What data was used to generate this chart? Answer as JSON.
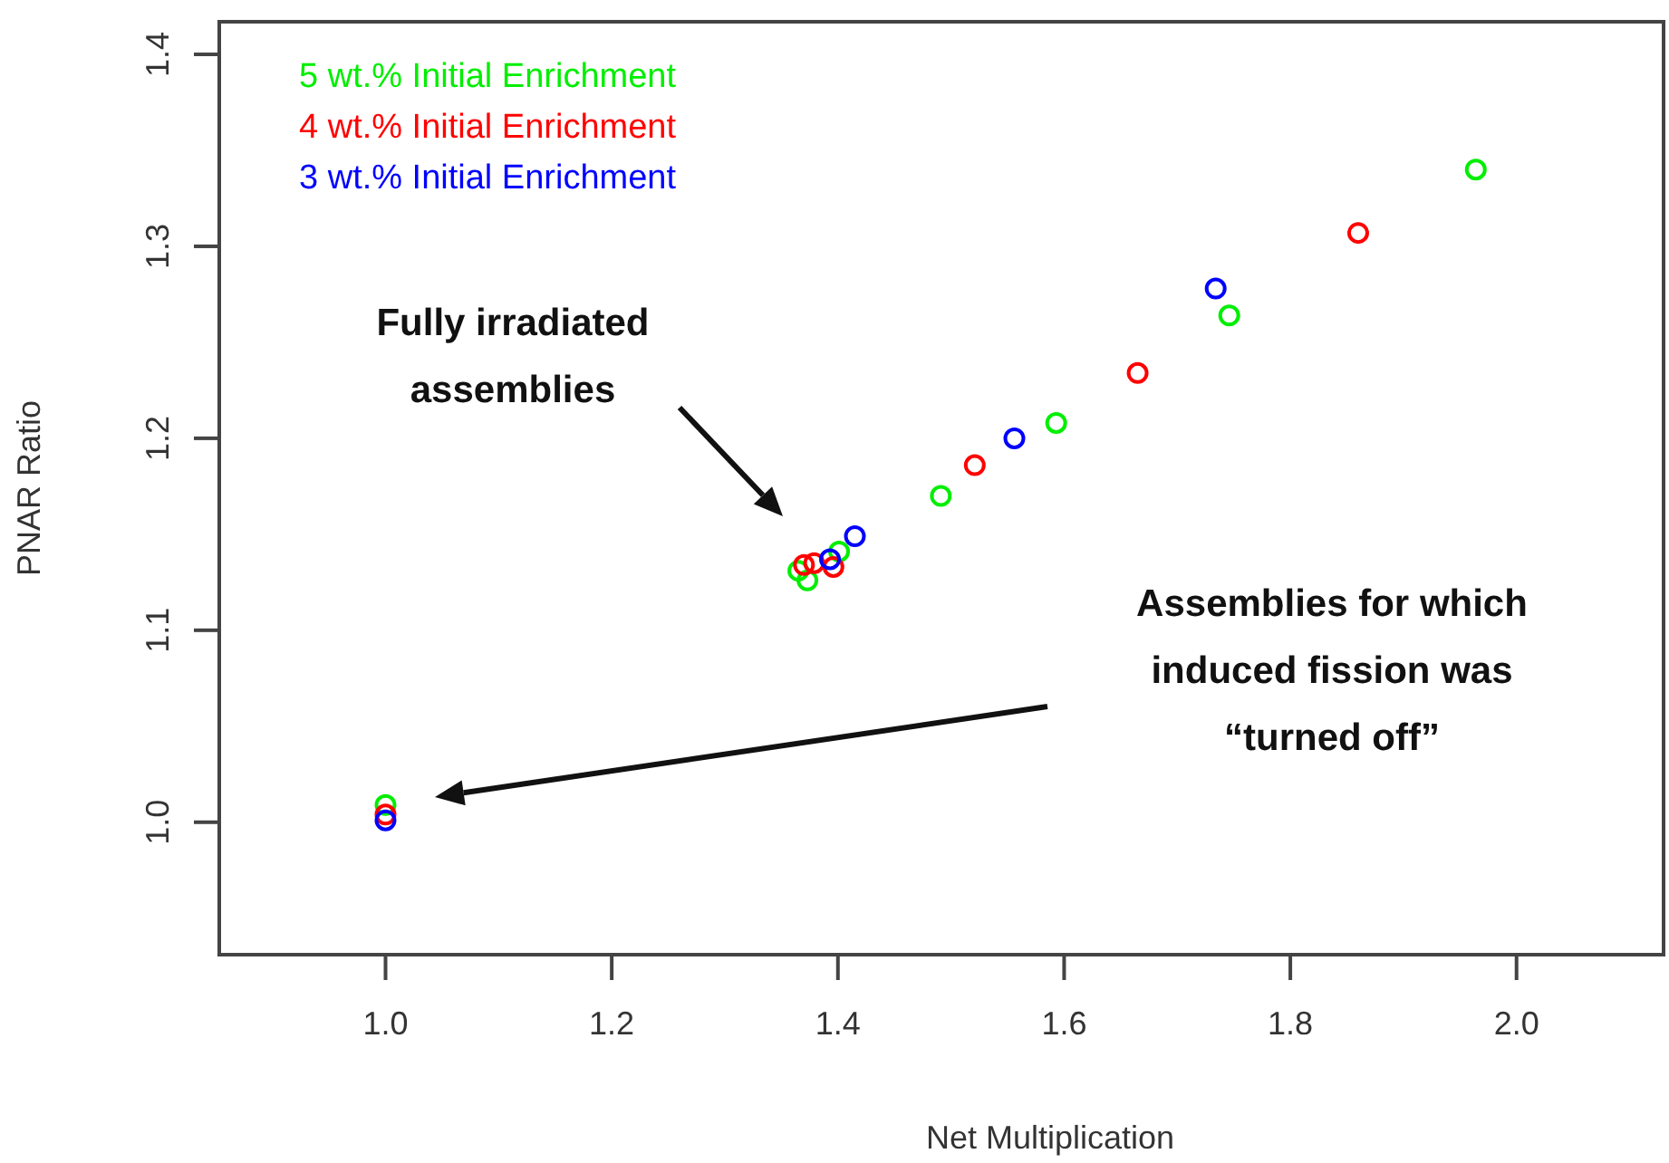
{
  "chart_data": {
    "type": "scatter",
    "xlabel": "Net Multiplication",
    "ylabel": "PNAR Ratio",
    "xlim": [
      0.853,
      2.13
    ],
    "ylim": [
      0.931,
      1.417
    ],
    "xticks": [
      {
        "value": 1.0,
        "label": "1.0"
      },
      {
        "value": 1.2,
        "label": "1.2"
      },
      {
        "value": 1.4,
        "label": "1.4"
      },
      {
        "value": 1.6,
        "label": "1.6"
      },
      {
        "value": 1.8,
        "label": "1.8"
      },
      {
        "value": 2.0,
        "label": "2.0"
      }
    ],
    "yticks": [
      {
        "value": 1.0,
        "label": "1.0"
      },
      {
        "value": 1.1,
        "label": "1.1"
      },
      {
        "value": 1.2,
        "label": "1.2"
      },
      {
        "value": 1.3,
        "label": "1.3"
      },
      {
        "value": 1.4,
        "label": "1.4"
      }
    ],
    "marker": "circle",
    "grid": false,
    "legend": "top left",
    "series": [
      {
        "name": "5 wt.% Initial Enrichment",
        "color": "#00ee00",
        "x": [
          1.0,
          1.365,
          1.373,
          1.401,
          1.491,
          1.593,
          1.746,
          1.964
        ],
        "values": [
          1.009,
          1.131,
          1.126,
          1.141,
          1.17,
          1.208,
          1.264,
          1.34
        ]
      },
      {
        "name": "4 wt.% Initial Enrichment",
        "color": "#ff0000",
        "x": [
          1.0,
          1.37,
          1.379,
          1.396,
          1.521,
          1.665,
          1.86
        ],
        "values": [
          1.004,
          1.134,
          1.135,
          1.133,
          1.186,
          1.234,
          1.307
        ]
      },
      {
        "name": "3 wt.% Initial Enrichment",
        "color": "#0000ff",
        "x": [
          1.0,
          1.393,
          1.415,
          1.556,
          1.734
        ],
        "values": [
          1.001,
          1.137,
          1.149,
          1.2,
          1.278
        ]
      }
    ],
    "annotations": [
      "Fully irradiated\nassemblies",
      "Assemblies for which\ninduced fission was\n“turned off”"
    ]
  }
}
